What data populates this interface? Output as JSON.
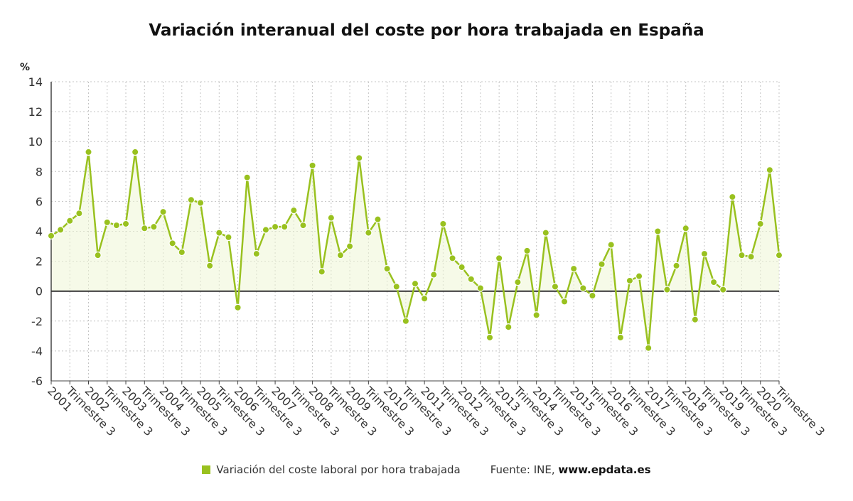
{
  "chart_data": {
    "type": "line",
    "title": "Variación interanual del coste por hora trabajada en España",
    "ylabel": "%",
    "ylim": [
      -6,
      14
    ],
    "yticks": [
      -6,
      -4,
      -2,
      0,
      2,
      4,
      6,
      8,
      10,
      12,
      14
    ],
    "grid": true,
    "legend_position": "bottom",
    "x_tick_labels": [
      "2001",
      "Trimestre 3",
      "2002",
      "Trimestre 3",
      "2003",
      "Trimestre 3",
      "2004",
      "Trimestre 3",
      "2005",
      "Trimestre 3",
      "2006",
      "Trimestre 3",
      "2007",
      "Trimestre 3",
      "2008",
      "Trimestre 3",
      "2009",
      "Trimestre 3",
      "2010",
      "Trimestre 3",
      "2011",
      "Trimestre 3",
      "2012",
      "Trimestre 3",
      "2013",
      "Trimestre 3",
      "2014",
      "Trimestre 3",
      "2015",
      "Trimestre 3",
      "2016",
      "Trimestre 3",
      "2017",
      "Trimestre 3",
      "2018",
      "Trimestre 3",
      "2019",
      "Trimestre 3",
      "2020",
      "Trimestre 3"
    ],
    "series": [
      {
        "name": "Variación del coste laboral por hora trabajada",
        "color": "#99c11f",
        "values": [
          3.7,
          4.1,
          4.7,
          5.2,
          9.3,
          2.4,
          4.6,
          4.4,
          4.5,
          9.3,
          4.2,
          4.3,
          5.3,
          3.2,
          2.6,
          6.1,
          5.9,
          1.7,
          3.9,
          3.6,
          -1.1,
          7.6,
          2.5,
          4.1,
          4.3,
          4.3,
          5.4,
          4.4,
          8.4,
          1.3,
          4.9,
          2.4,
          3.0,
          8.9,
          3.9,
          4.8,
          1.5,
          0.3,
          -2.0,
          0.5,
          -0.5,
          1.1,
          4.5,
          2.2,
          1.6,
          0.8,
          0.2,
          -3.1,
          2.2,
          -2.4,
          0.6,
          2.7,
          -1.6,
          3.9,
          0.3,
          -0.7,
          1.5,
          0.2,
          -0.3,
          1.8,
          3.1,
          -3.1,
          0.7,
          1.0,
          -3.8,
          4.0,
          0.1,
          1.7,
          4.2,
          -1.9,
          2.5,
          0.6,
          0.1,
          6.3,
          2.4,
          2.3,
          4.5,
          8.1,
          2.4
        ]
      }
    ]
  },
  "source": {
    "prefix": "Fuente: INE,",
    "site": "www.epdata.es"
  }
}
